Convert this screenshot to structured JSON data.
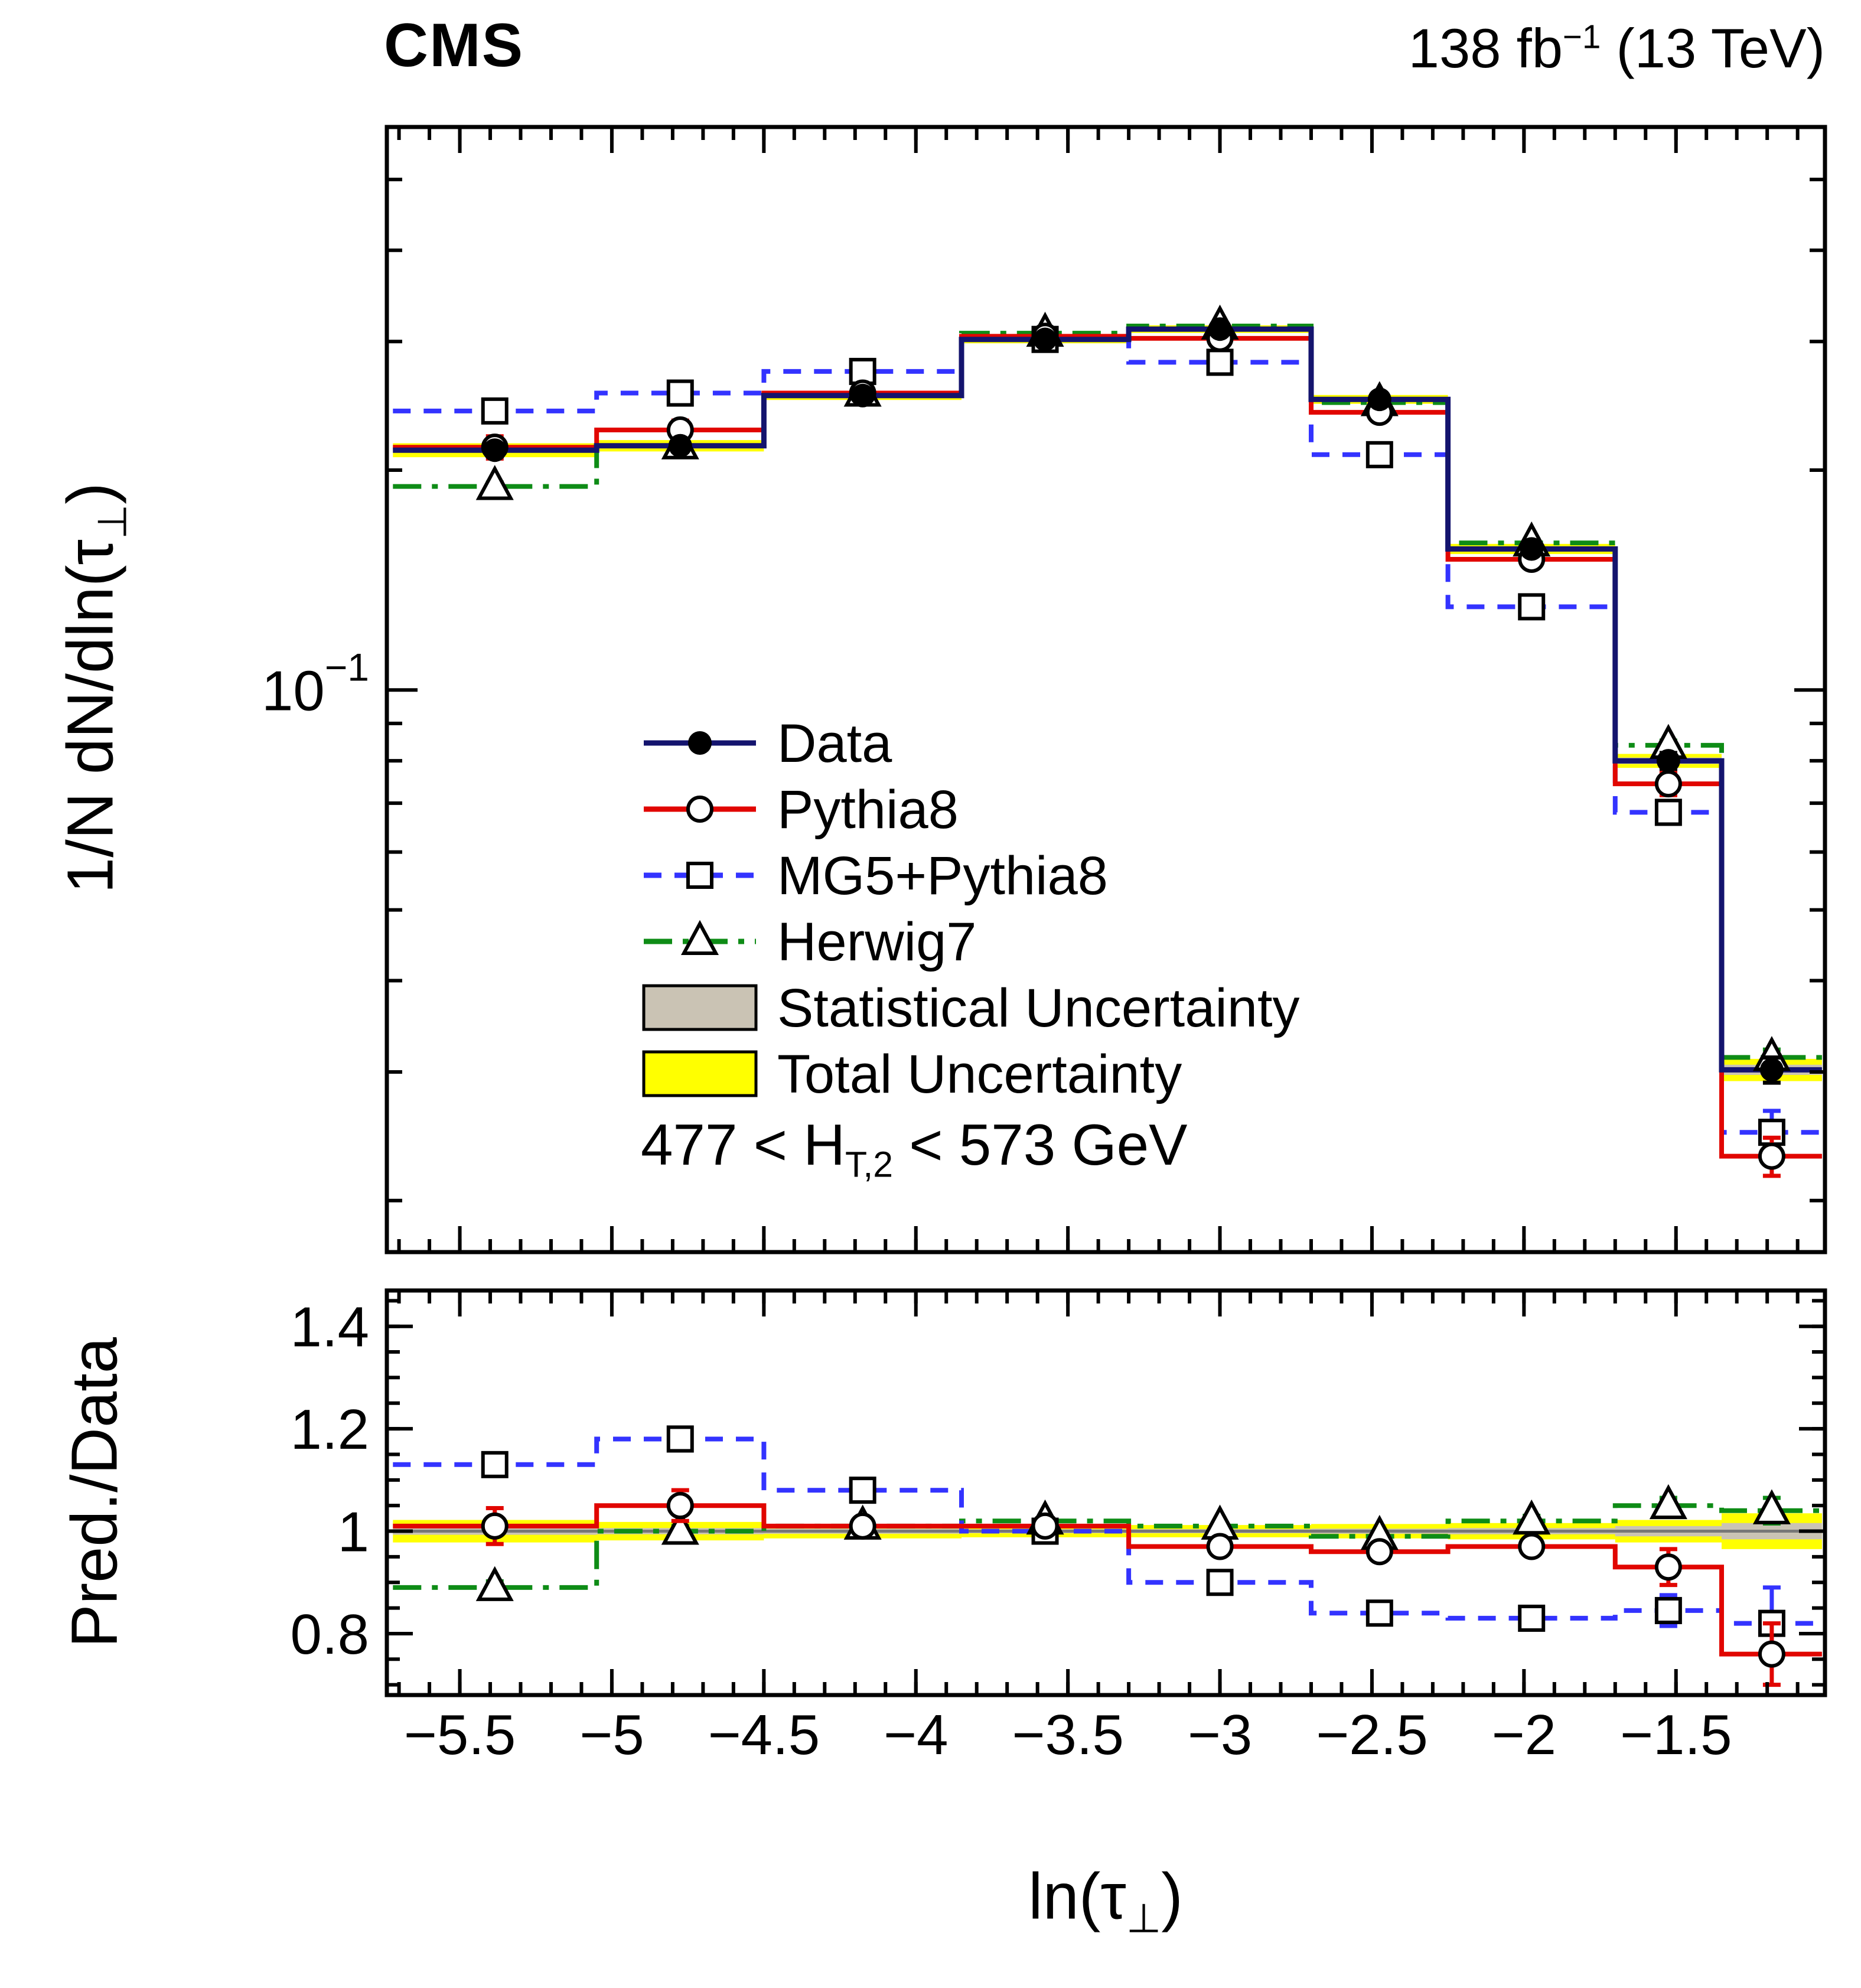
{
  "header": {
    "experiment": "CMS",
    "lumi_prefix": "138 fb",
    "lumi_sup": "−1",
    "lumi_suffix": " (13 TeV)"
  },
  "labels": {
    "x_title_pre": "ln(τ",
    "x_title_sub": "⊥",
    "x_title_post": ")",
    "y_main_pre": "1/N dN/dln(τ",
    "y_main_sub": "⊥",
    "y_main_post": ")",
    "y_ratio": "Pred./Data",
    "annotation_pre": "477 < H",
    "annotation_sub": "T,2",
    "annotation_post": " < 573 GeV"
  },
  "chart_data": {
    "type": "line",
    "subtype": "step-histogram-with-ratio-panel",
    "title": "",
    "xlabel": "ln(tau_perp)",
    "ylabel_main": "1/N dN/dln(tau_perp)",
    "ylabel_ratio": "Pred./Data",
    "x_axis": {
      "min": -5.74,
      "max": -1.01,
      "major_ticks": [
        -5.5,
        -5,
        -4.5,
        -4,
        -3.5,
        -3,
        -2.5,
        -2,
        -1.5
      ],
      "tick_labels": [
        "−5.5",
        "−5",
        "−4.5",
        "−4",
        "−3.5",
        "−3",
        "−2.5",
        "−2",
        "−1.5"
      ],
      "minor_step": 0.1
    },
    "y_main_axis": {
      "scale": "log",
      "min": 0.017,
      "max": 0.59,
      "major_ticks": [
        0.1
      ],
      "major_labels": [
        {
          "base": "10",
          "sup": "−1"
        }
      ],
      "minor_ticks": [
        0.02,
        0.03,
        0.04,
        0.05,
        0.06,
        0.07,
        0.08,
        0.09,
        0.2,
        0.3,
        0.4,
        0.5
      ]
    },
    "y_ratio_axis": {
      "min": 0.68,
      "max": 1.47,
      "major_ticks": [
        0.8,
        1.0,
        1.2,
        1.4
      ],
      "tick_labels": [
        "0.8",
        "1",
        "1.2",
        "1.4"
      ],
      "minor_step": 0.05
    },
    "bin_edges": [
      -5.72,
      -5.05,
      -4.5,
      -3.85,
      -3.3,
      -2.7,
      -2.25,
      -1.7,
      -1.35,
      -1.02
    ],
    "series": [
      {
        "name": "Data",
        "color": "#14146e",
        "marker": "filled-circle",
        "line_style": "solid",
        "values": [
          0.213,
          0.216,
          0.253,
          0.302,
          0.312,
          0.25,
          0.156,
          0.08,
          0.0302
        ],
        "values_err": [
          0.004,
          0.004,
          0.004,
          0.004,
          0.004,
          0.004,
          0.003,
          0.002,
          0.0012
        ]
      },
      {
        "name": "Pythia8",
        "color": "#e10600",
        "marker": "open-circle",
        "line_style": "solid",
        "values": [
          0.215,
          0.227,
          0.255,
          0.305,
          0.303,
          0.24,
          0.151,
          0.0744,
          0.023
        ],
        "ratio": [
          1.01,
          1.05,
          1.01,
          1.01,
          0.97,
          0.96,
          0.97,
          0.93,
          0.76
        ],
        "ratio_err": [
          0.035,
          0.03,
          0.012,
          0.01,
          0.01,
          0.012,
          0.015,
          0.035,
          0.06
        ]
      },
      {
        "name": "MG5+Pythia8",
        "color": "#3333ff",
        "marker": "open-square",
        "line_style": "dashed",
        "values": [
          0.241,
          0.255,
          0.273,
          0.302,
          0.281,
          0.21,
          0.13,
          0.068,
          0.0248
        ],
        "ratio": [
          1.13,
          1.18,
          1.08,
          1.0,
          0.9,
          0.84,
          0.83,
          0.845,
          0.82
        ],
        "ratio_err": [
          0.015,
          0.012,
          0.008,
          0.006,
          0.007,
          0.009,
          0.012,
          0.03,
          0.07
        ]
      },
      {
        "name": "Herwig7",
        "color": "#0e8c16",
        "marker": "open-triangle",
        "line_style": "dashdot",
        "values": [
          0.19,
          0.216,
          0.255,
          0.308,
          0.315,
          0.2475,
          0.159,
          0.084,
          0.0314
        ],
        "ratio": [
          0.89,
          1.0,
          1.01,
          1.02,
          1.01,
          0.99,
          1.02,
          1.05,
          1.04
        ],
        "ratio_err": [
          0.012,
          0.01,
          0.007,
          0.006,
          0.006,
          0.008,
          0.01,
          0.015,
          0.025
        ]
      }
    ],
    "uncertainty": {
      "stat_label": "Statistical Uncertainty",
      "total_label": "Total Uncertainty",
      "stat_color": "#cac3b4",
      "total_color": "#ffff00",
      "ratio_total": [
        0.022,
        0.018,
        0.014,
        0.012,
        0.012,
        0.014,
        0.016,
        0.022,
        0.035
      ],
      "ratio_stat": [
        0.007,
        0.006,
        0.005,
        0.004,
        0.004,
        0.005,
        0.006,
        0.01,
        0.016
      ]
    },
    "legend_position": "center-left",
    "grid": false
  }
}
